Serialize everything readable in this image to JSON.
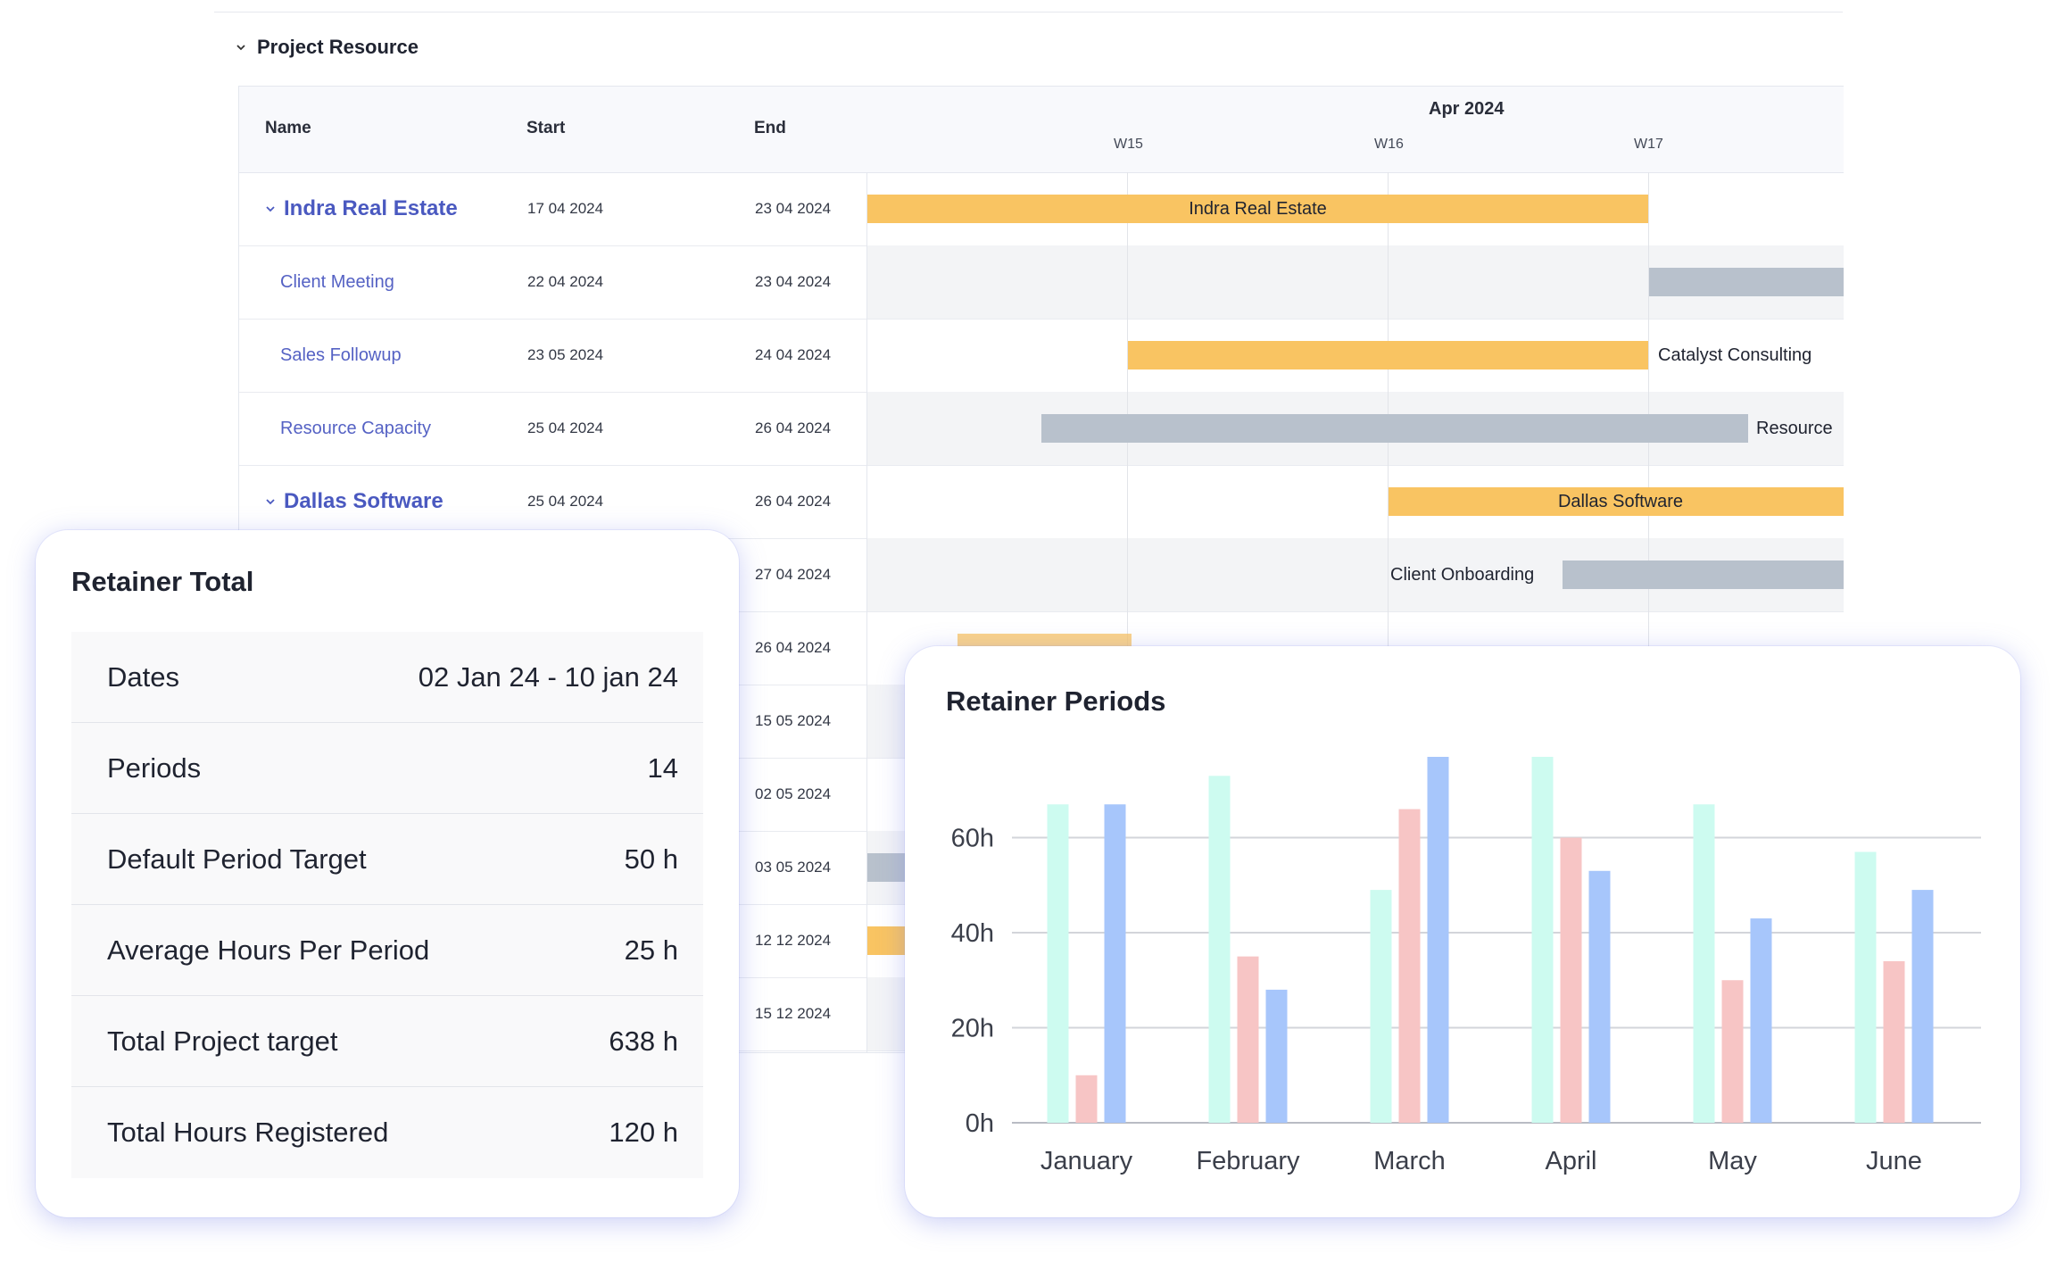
{
  "section": {
    "title": "Project Resource"
  },
  "gantt": {
    "columns": {
      "name": "Name",
      "start": "Start",
      "end": "End"
    },
    "month": "Apr 2024",
    "weeks": [
      "W15",
      "W16",
      "W17"
    ],
    "rows": [
      {
        "name": "Indra Real Estate",
        "group": true,
        "start": "17 04 2024",
        "end": "23 04 2024",
        "bar_label": "Indra Real Estate"
      },
      {
        "name": "Client Meeting",
        "group": false,
        "start": "22 04 2024",
        "end": "23 04 2024",
        "bar_label": ""
      },
      {
        "name": "Sales Followup",
        "group": false,
        "start": "23 05 2024",
        "end": "24 04 2024",
        "bar_label": "Catalyst Consulting"
      },
      {
        "name": "Resource Capacity",
        "group": false,
        "start": "25 04 2024",
        "end": "26 04 2024",
        "bar_label": "Resource"
      },
      {
        "name": "Dallas Software",
        "group": true,
        "start": "25 04 2024",
        "end": "26 04 2024",
        "bar_label": "Dallas Software"
      },
      {
        "name": "",
        "group": false,
        "start": "",
        "end": "27 04 2024",
        "bar_label": "Client Onboarding"
      },
      {
        "name": "",
        "group": false,
        "start": "",
        "end": "26 04 2024",
        "bar_label": ""
      },
      {
        "name": "",
        "group": false,
        "start": "",
        "end": "15 05 2024",
        "bar_label": ""
      },
      {
        "name": "",
        "group": false,
        "start": "",
        "end": "02 05 2024",
        "bar_label": ""
      },
      {
        "name": "",
        "group": false,
        "start": "",
        "end": "03 05 2024",
        "bar_label": ""
      },
      {
        "name": "",
        "group": false,
        "start": "",
        "end": "12 12 2024",
        "bar_label": ""
      },
      {
        "name": "",
        "group": false,
        "start": "",
        "end": "15 12 2024",
        "bar_label": ""
      }
    ]
  },
  "retainer_total": {
    "title": "Retainer Total",
    "rows": [
      {
        "label": "Dates",
        "value": "02 Jan 24 - 10 jan 24"
      },
      {
        "label": "Periods",
        "value": "14"
      },
      {
        "label": "Default Period Target",
        "value": "50 h"
      },
      {
        "label": "Average Hours Per Period",
        "value": "25 h"
      },
      {
        "label": "Total Project target",
        "value": "638 h"
      },
      {
        "label": "Total Hours Registered",
        "value": "120 h"
      }
    ]
  },
  "retainer_periods": {
    "title": "Retainer Periods"
  },
  "chart_data": {
    "type": "bar",
    "title": "Retainer Periods",
    "categories": [
      "January",
      "February",
      "March",
      "April",
      "May",
      "June"
    ],
    "y_ticks": [
      "0h",
      "20h",
      "40h",
      "60h"
    ],
    "ylim": [
      0,
      77
    ],
    "grid": true,
    "series": [
      {
        "values": [
          67,
          73,
          49,
          77,
          67,
          57
        ],
        "color": "#cdfbf0"
      },
      {
        "values": [
          10,
          35,
          66,
          60,
          30,
          34
        ],
        "color": "#f7c5c5"
      },
      {
        "values": [
          67,
          28,
          77,
          53,
          43,
          49
        ],
        "color": "#a7c6fb"
      }
    ]
  }
}
